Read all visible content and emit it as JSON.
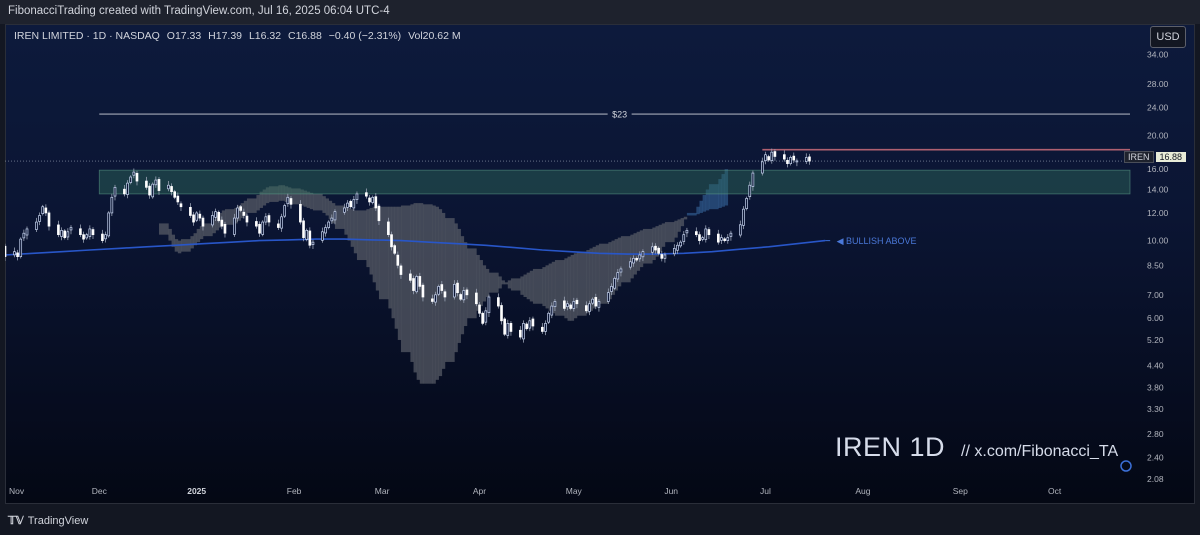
{
  "header": {
    "attribution": "FibonacciTrading created with TradingView.com, Jul 16, 2025 06:04 UTC-4"
  },
  "legend": {
    "symbol_line": "IREN LIMITED · 1D · NASDAQ",
    "open": "O17.33",
    "high": "H17.39",
    "low": "L16.32",
    "close": "C16.88",
    "change": "−0.40 (−2.31%)",
    "volume": "Vol20.62 M"
  },
  "currency_button": "USD",
  "price_tag": {
    "symbol": "IREN",
    "price": "16.88"
  },
  "annotations": {
    "target": "$23",
    "bullish": "◀ BULLISH ABOVE"
  },
  "watermark": {
    "title": "IREN 1D",
    "handle": "//  x.com/Fibonacci_TA"
  },
  "footer": {
    "brand": "TradingView"
  },
  "chart_data": {
    "type": "candlestick",
    "symbol": "IREN",
    "timeframe": "1D",
    "scale": "log",
    "y_axis_labels": [
      "34.00",
      "28.00",
      "24.00",
      "20.00",
      "16.00",
      "14.00",
      "12.00",
      "10.00",
      "8.50",
      "7.00",
      "6.00",
      "5.20",
      "4.40",
      "3.80",
      "3.30",
      "2.80",
      "2.40",
      "2.08"
    ],
    "x_axis_labels": [
      "Nov",
      "Dec",
      "2025",
      "Feb",
      "Mar",
      "Apr",
      "May",
      "Jun",
      "Jul",
      "Aug",
      "Sep",
      "Oct"
    ],
    "x_tick_dates": [
      "2024-11-01",
      "2024-12-01",
      "2025-01-01",
      "2025-02-01",
      "2025-03-01",
      "2025-04-01",
      "2025-05-01",
      "2025-06-01",
      "2025-07-01",
      "2025-08-01",
      "2025-09-01",
      "2025-10-01"
    ],
    "date_range": [
      "2024-11-01",
      "2025-10-25"
    ],
    "price_range": [
      1.95,
      40
    ],
    "last_date": "2025-07-15",
    "closes": [
      10.8,
      9.6,
      9.0,
      9.3,
      9.0,
      10.1,
      10.5,
      10.8,
      11.3,
      11.8,
      12.5,
      12.0,
      11.0,
      10.4,
      10.7,
      10.2,
      10.6,
      10.9,
      10.4,
      10.1,
      10.4,
      10.8,
      10.4,
      10.0,
      10.4,
      12.0,
      13.3,
      14.2,
      13.6,
      14.6,
      15.2,
      15.7,
      14.8,
      14.2,
      13.5,
      14.5,
      14.9,
      13.9,
      14.4,
      13.8,
      13.3,
      12.9,
      12.5,
      11.8,
      11.3,
      12.0,
      11.6,
      11.0,
      11.8,
      12.1,
      11.4,
      11.0,
      10.5,
      11.6,
      12.4,
      12.2,
      11.8,
      11.3,
      11.0,
      10.5,
      11.3,
      11.7,
      11.3,
      10.9,
      11.7,
      12.6,
      13.3,
      12.7,
      11.3,
      10.2,
      10.7,
      9.7,
      9.9,
      10.6,
      10.9,
      11.3,
      11.6,
      12.1,
      12.4,
      12.8,
      12.5,
      13.1,
      13.6,
      13.4,
      12.9,
      13.3,
      12.4,
      11.4,
      10.4,
      9.6,
      9.2,
      8.5,
      8.0,
      7.7,
      7.2,
      7.9,
      7.4,
      6.9,
      6.7,
      7.0,
      7.4,
      7.2,
      6.9,
      7.5,
      7.1,
      6.8,
      7.2,
      7.0,
      6.6,
      6.2,
      5.8,
      6.3,
      6.9,
      6.5,
      5.9,
      5.4,
      5.8,
      5.5,
      5.3,
      5.8,
      5.6,
      5.9,
      5.7,
      5.5,
      5.8,
      6.2,
      6.5,
      6.7,
      6.4,
      6.6,
      6.4,
      6.7,
      6.6,
      6.3,
      6.6,
      6.8,
      6.5,
      6.7,
      7.1,
      7.4,
      7.8,
      8.1,
      8.3,
      8.7,
      8.9,
      8.8,
      9.1,
      9.3,
      9.6,
      9.4,
      9.2,
      8.9,
      9.1,
      9.5,
      9.7,
      9.9,
      10.4,
      10.7,
      10.4,
      10.0,
      10.2,
      10.8,
      10.4,
      9.9,
      10.2,
      10.0,
      10.2,
      10.5,
      11.1,
      12.3,
      13.2,
      14.4,
      15.6,
      16.8,
      17.6,
      17.0,
      17.9,
      17.4,
      17.1,
      16.6,
      17.3,
      17.0,
      16.9,
      17.28,
      16.88
    ],
    "kumo_top": [
      11.2,
      10.8,
      10.4,
      10.1,
      10.0,
      10.1,
      10.3,
      10.5,
      10.8,
      11.0,
      11.2,
      11.5,
      11.8,
      12.0,
      12.2,
      12.3,
      12.4,
      12.6,
      12.8,
      13.0,
      13.2,
      13.5,
      13.8,
      14.0,
      14.2,
      14.3,
      14.4,
      14.4,
      14.3,
      14.2,
      14.1,
      14.0,
      13.9,
      13.8,
      13.7,
      13.6,
      13.4,
      13.2,
      13.0,
      12.8,
      12.6,
      12.5,
      12.4,
      12.3,
      12.2,
      12.2,
      12.3,
      12.4,
      12.5,
      12.5,
      12.5,
      12.5,
      12.5,
      12.5,
      12.5,
      12.6,
      12.7,
      12.8,
      12.8,
      12.8,
      12.7,
      12.6,
      12.5,
      12.3,
      12.0,
      11.6,
      11.2,
      10.8,
      10.3,
      9.9,
      9.5,
      9.1,
      8.8,
      8.5,
      8.3,
      8.1,
      7.9,
      7.7,
      7.5,
      7.3,
      7.2,
      7.0,
      6.9,
      6.8,
      6.7,
      6.6,
      6.5,
      6.4,
      6.3,
      6.2,
      6.1,
      6.0,
      5.9,
      5.9,
      6.0,
      6.1,
      6.2,
      6.3,
      6.4,
      6.5,
      6.6,
      6.8,
      7.0,
      7.2,
      7.4,
      7.6,
      7.8,
      8.0,
      8.2,
      8.4,
      8.6,
      8.8,
      9.0,
      9.3,
      9.6,
      9.9,
      10.2,
      10.6,
      11.0,
      11.5,
      12.0,
      12.5,
      13.0,
      13.5,
      14.0,
      14.5,
      15.0,
      15.5,
      16.0,
      16.5
    ],
    "kumo_bottom": [
      10.4,
      10.0,
      9.6,
      9.3,
      9.2,
      9.3,
      9.5,
      9.7,
      9.9,
      10.1,
      10.3,
      10.5,
      10.7,
      10.9,
      11.0,
      11.1,
      11.2,
      11.4,
      11.6,
      11.8,
      12.0,
      12.2,
      12.4,
      12.6,
      12.8,
      12.9,
      13.0,
      13.0,
      12.9,
      12.8,
      12.7,
      12.6,
      12.5,
      12.4,
      12.3,
      12.2,
      12.0,
      11.8,
      11.5,
      11.2,
      10.8,
      10.4,
      10.0,
      9.6,
      9.2,
      8.8,
      8.4,
      8.0,
      7.6,
      7.2,
      6.8,
      6.4,
      6.0,
      5.6,
      5.2,
      4.8,
      4.5,
      4.2,
      4.0,
      3.9,
      3.9,
      3.9,
      4.0,
      4.1,
      4.3,
      4.5,
      4.8,
      5.1,
      5.4,
      5.7,
      6.0,
      6.3,
      6.5,
      6.7,
      6.9,
      7.1,
      7.3,
      7.5,
      7.6,
      7.7,
      7.8,
      7.9,
      8.0,
      8.1,
      8.2,
      8.3,
      8.4,
      8.5,
      8.6,
      8.7,
      8.8,
      8.9,
      9.0,
      9.1,
      9.2,
      9.3,
      9.4,
      9.5,
      9.6,
      9.7,
      9.8,
      9.9,
      10.0,
      10.1,
      10.2,
      10.3,
      10.4,
      10.5,
      10.6,
      10.7,
      10.8,
      10.9,
      11.0,
      11.1,
      11.2,
      11.3,
      11.4,
      11.5,
      11.6,
      11.7,
      11.8,
      11.9,
      12.0,
      12.1,
      12.2,
      12.3,
      12.4,
      12.5,
      12.6,
      12.7
    ],
    "kumo_start_date": "2024-12-20",
    "moving_average": [
      9.1,
      9.2,
      9.3,
      9.4,
      9.5,
      9.6,
      9.7,
      9.8,
      9.9,
      10.0,
      10.05,
      10.1,
      10.1,
      10.05,
      10.0,
      9.9,
      9.8,
      9.7,
      9.55,
      9.4,
      9.3,
      9.2,
      9.15,
      9.15,
      9.2,
      9.3,
      9.45,
      9.6,
      9.8,
      10.0
    ],
    "moving_average_dates": [
      "2024-11-01",
      "2025-07-20"
    ],
    "levels": [
      {
        "label": "$23",
        "price": 23,
        "from": "2024-12-01",
        "to": "2025-10-25"
      },
      {
        "label": "resistance",
        "price": 18.2,
        "from": "2025-06-30",
        "to": "2025-10-25"
      },
      {
        "label": "support zone",
        "price_top": 15.9,
        "price_bottom": 13.6,
        "from": "2024-12-01",
        "to": "2025-10-25"
      },
      {
        "label": "BULLISH ABOVE",
        "price": 10.0,
        "from": "2025-07-20",
        "to": "2025-08-20"
      }
    ],
    "colors": {
      "up": "#c9d6f2",
      "down": "#ffffff",
      "wick": "#9aa3b5",
      "ma": "#2856c8",
      "kumo_bull": "#3a6ea5",
      "kumo_bear": "#5a5e68",
      "zone": "#2f6b5a",
      "resistance": "#b06070"
    }
  }
}
